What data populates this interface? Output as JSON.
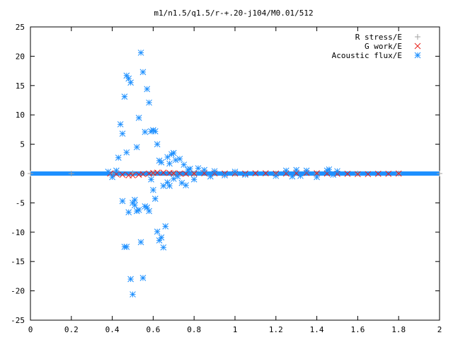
{
  "chart_data": {
    "type": "scatter",
    "title": "m1/n1.5/q1.5/r-+.20-j104/M0.01/512",
    "xlabel": "",
    "ylabel": "",
    "xlim": [
      0,
      2
    ],
    "ylim": [
      -25,
      25
    ],
    "x_ticks": [
      "0",
      "0.2",
      "0.4",
      "0.6",
      "0.8",
      "1",
      "1.2",
      "1.4",
      "1.6",
      "1.8",
      "2"
    ],
    "y_ticks": [
      "25",
      "20",
      "15",
      "10",
      "5",
      "0",
      "-5",
      "-10",
      "-15",
      "-20",
      "-25"
    ],
    "grid": false,
    "legend_position": "top-right",
    "series": [
      {
        "name": "R stress/E",
        "marker": "plus",
        "color": "#a0a0a0",
        "x": [
          0.0,
          0.2,
          0.4,
          0.5,
          0.6,
          0.7,
          0.8,
          1.0,
          1.2,
          1.4,
          1.6,
          1.8,
          2.0
        ],
        "y": [
          0.0,
          0.0,
          0.0,
          0.05,
          0.05,
          0.05,
          0.0,
          0.0,
          0.0,
          0.0,
          0.0,
          0.0,
          0.0
        ]
      },
      {
        "name": "G work/E",
        "marker": "cross",
        "color": "#e8201a",
        "x": [
          0.39,
          0.42,
          0.45,
          0.48,
          0.5,
          0.53,
          0.55,
          0.58,
          0.6,
          0.62,
          0.65,
          0.68,
          0.7,
          0.73,
          0.76,
          0.8,
          0.85,
          0.9,
          0.95,
          1.0,
          1.05,
          1.1,
          1.15,
          1.2,
          1.25,
          1.3,
          1.35,
          1.4,
          1.45,
          1.5,
          1.55,
          1.6,
          1.65,
          1.7,
          1.75,
          1.8
        ],
        "y": [
          0.0,
          -0.1,
          -0.2,
          -0.3,
          -0.3,
          -0.2,
          -0.1,
          0.0,
          0.1,
          0.15,
          0.15,
          0.1,
          0.05,
          0.0,
          -0.05,
          0.0,
          0.05,
          0.05,
          0.0,
          0.0,
          0.0,
          0.05,
          0.05,
          0.0,
          0.0,
          0.05,
          0.1,
          0.05,
          0.0,
          -0.05,
          -0.05,
          -0.1,
          -0.1,
          -0.05,
          -0.05,
          0.0
        ]
      },
      {
        "name": "Acoustic flux/E",
        "marker": "star",
        "color": "#1e90ff",
        "x": [
          0.38,
          0.4,
          0.42,
          0.43,
          0.44,
          0.45,
          0.45,
          0.46,
          0.46,
          0.47,
          0.47,
          0.47,
          0.48,
          0.48,
          0.49,
          0.49,
          0.5,
          0.5,
          0.51,
          0.51,
          0.52,
          0.52,
          0.53,
          0.53,
          0.54,
          0.54,
          0.55,
          0.55,
          0.56,
          0.56,
          0.57,
          0.57,
          0.58,
          0.58,
          0.59,
          0.59,
          0.6,
          0.6,
          0.61,
          0.61,
          0.62,
          0.62,
          0.63,
          0.63,
          0.64,
          0.64,
          0.65,
          0.65,
          0.66,
          0.67,
          0.67,
          0.68,
          0.68,
          0.69,
          0.7,
          0.7,
          0.71,
          0.72,
          0.73,
          0.74,
          0.75,
          0.76,
          0.77,
          0.78,
          0.8,
          0.82,
          0.85,
          0.88,
          0.9,
          0.95,
          1.0,
          1.05,
          1.2,
          1.25,
          1.28,
          1.3,
          1.32,
          1.35,
          1.4,
          1.45,
          1.46,
          1.48,
          1.5
        ],
        "y": [
          0.3,
          -0.6,
          0.5,
          2.7,
          8.4,
          6.8,
          -4.7,
          -12.5,
          13.1,
          3.6,
          16.7,
          -12.5,
          -6.6,
          16.2,
          -18.0,
          15.5,
          -20.6,
          -5.0,
          -5.4,
          -4.5,
          4.5,
          -6.4,
          9.5,
          -6.2,
          20.6,
          -11.7,
          17.3,
          -17.8,
          7.1,
          -5.6,
          14.4,
          -5.8,
          12.1,
          -6.4,
          7.2,
          -1.0,
          7.4,
          -2.8,
          7.2,
          -4.3,
          5.0,
          -9.9,
          2.2,
          -11.4,
          1.9,
          -10.9,
          -12.6,
          -2.1,
          -9.0,
          2.8,
          -1.5,
          1.7,
          -2.1,
          3.3,
          3.5,
          -0.9,
          2.3,
          -0.5,
          2.5,
          -1.6,
          1.5,
          -2.0,
          0.6,
          0.8,
          -1.0,
          0.9,
          0.6,
          -0.5,
          0.4,
          -0.3,
          0.3,
          -0.2,
          -0.4,
          0.5,
          -0.5,
          0.6,
          -0.4,
          0.5,
          -0.6,
          0.5,
          0.7,
          -0.2,
          0.4
        ]
      }
    ]
  }
}
